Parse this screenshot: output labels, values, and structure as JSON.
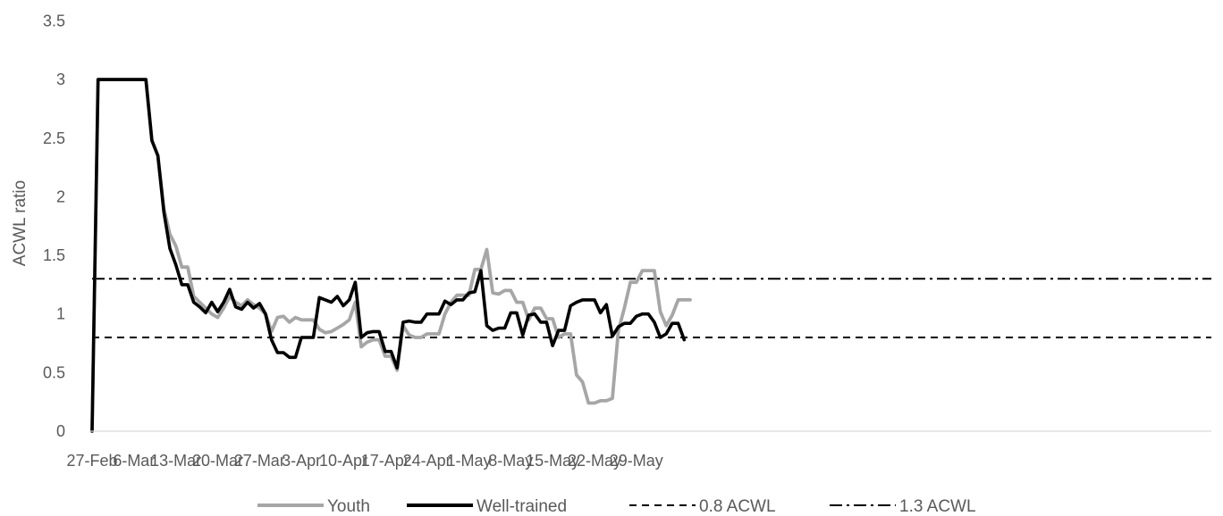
{
  "chart_data": {
    "type": "line",
    "title": "",
    "xlabel": "",
    "ylabel": "ACWL ratio",
    "ylim": [
      0,
      3.5
    ],
    "yticks": [
      "0",
      "0.5",
      "1",
      "1.5",
      "2",
      "2.5",
      "3",
      "3.5"
    ],
    "x_start": "27-Feb",
    "xticks": [
      "27-Feb",
      "6-Mar",
      "13-Mar",
      "20-Mar",
      "27-Mar",
      "3-Apr",
      "10-Apr",
      "17-Apr",
      "24-Apr",
      "1-May",
      "8-May",
      "15-May",
      "22-May",
      "29-May"
    ],
    "grid": false,
    "legend_position": "bottom",
    "series": [
      {
        "name": "Youth",
        "color": "#a6a6a6",
        "style": "solid",
        "values": [
          0,
          3,
          3,
          3,
          3,
          3,
          3,
          3,
          3,
          3,
          2.48,
          2.35,
          1.9,
          1.68,
          1.58,
          1.4,
          1.4,
          1.15,
          1.1,
          1.05,
          1.0,
          0.97,
          1.05,
          1.15,
          1.1,
          1.07,
          1.12,
          1.08,
          1.05,
          1.0,
          0.85,
          0.97,
          0.98,
          0.93,
          0.97,
          0.95,
          0.95,
          0.95,
          0.87,
          0.84,
          0.85,
          0.88,
          0.91,
          0.95,
          1.1,
          0.72,
          0.76,
          0.78,
          0.78,
          0.64,
          0.64,
          0.52,
          0.9,
          0.82,
          0.8,
          0.8,
          0.83,
          0.83,
          0.83,
          1.0,
          1.1,
          1.16,
          1.16,
          1.16,
          1.38,
          1.38,
          1.55,
          1.18,
          1.17,
          1.2,
          1.2,
          1.1,
          1.1,
          0.95,
          1.05,
          1.05,
          0.96,
          0.96,
          0.8,
          0.83,
          0.83,
          0.48,
          0.42,
          0.24,
          0.24,
          0.26,
          0.26,
          0.28,
          0.86,
          1.05,
          1.27,
          1.27,
          1.37,
          1.37,
          1.37,
          1.02,
          0.9,
          0.99,
          1.12,
          1.12,
          1.12
        ]
      },
      {
        "name": "Well-trained",
        "color": "#000000",
        "style": "solid",
        "values": [
          0,
          3,
          3,
          3,
          3,
          3,
          3,
          3,
          3,
          3,
          2.48,
          2.35,
          1.87,
          1.56,
          1.42,
          1.25,
          1.25,
          1.1,
          1.06,
          1.01,
          1.1,
          1.02,
          1.1,
          1.21,
          1.06,
          1.04,
          1.1,
          1.05,
          1.09,
          1.0,
          0.78,
          0.67,
          0.67,
          0.63,
          0.63,
          0.8,
          0.8,
          0.8,
          1.14,
          1.12,
          1.1,
          1.15,
          1.07,
          1.12,
          1.27,
          0.8,
          0.84,
          0.85,
          0.85,
          0.68,
          0.68,
          0.54,
          0.93,
          0.94,
          0.93,
          0.93,
          1.0,
          1.0,
          1.0,
          1.11,
          1.08,
          1.12,
          1.12,
          1.18,
          1.19,
          1.37,
          0.9,
          0.86,
          0.88,
          0.88,
          1.01,
          1.01,
          0.82,
          0.99,
          1.0,
          0.93,
          0.93,
          0.73,
          0.86,
          0.86,
          1.07,
          1.1,
          1.12,
          1.12,
          1.12,
          1.01,
          1.08,
          0.81,
          0.89,
          0.92,
          0.92,
          0.98,
          1.0,
          1.0,
          0.93,
          0.8,
          0.83,
          0.92,
          0.92,
          0.78
        ]
      },
      {
        "name": "0.8 ACWL",
        "color": "#000000",
        "style": "dashed",
        "constant": 0.8
      },
      {
        "name": "1.3 ACWL",
        "color": "#000000",
        "style": "dashdot",
        "constant": 1.3
      }
    ]
  }
}
